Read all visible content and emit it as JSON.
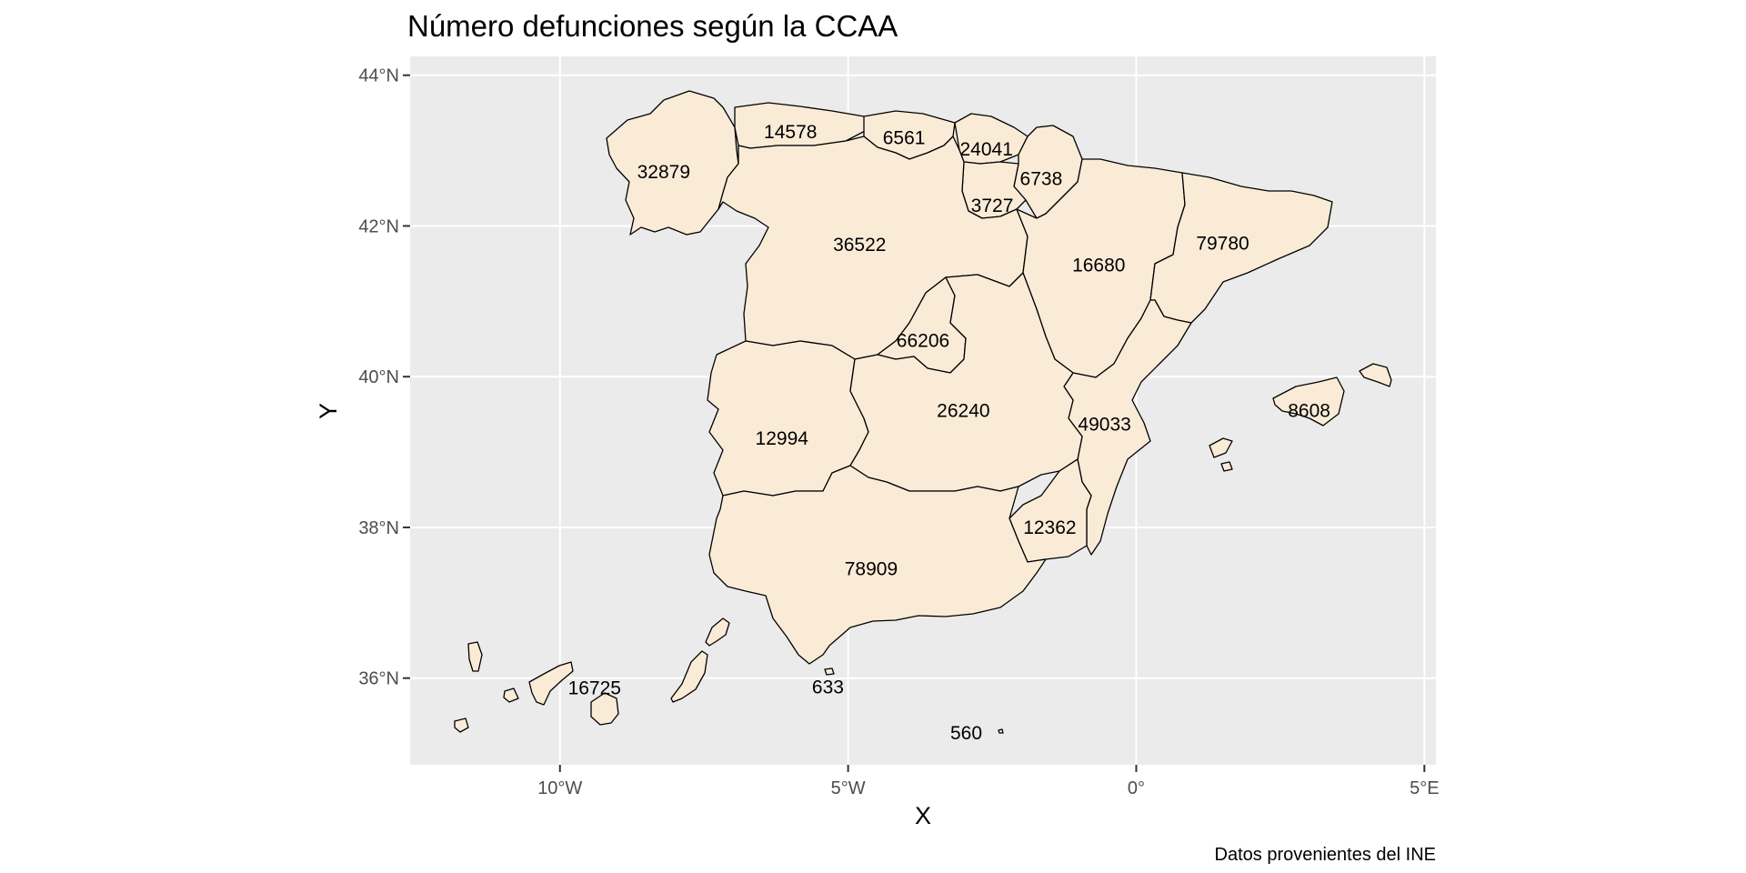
{
  "chart_data": {
    "type": "choropleth-map",
    "title": "Número defunciones según la CCAA",
    "xlabel": "X",
    "ylabel": "Y",
    "caption": "Datos provenientes del INE",
    "xlim": [
      -12.6,
      5.2
    ],
    "ylim": [
      34.85,
      44.25
    ],
    "x_ticks": [
      {
        "value": -10,
        "label": "10°W"
      },
      {
        "value": -5,
        "label": "5°W"
      },
      {
        "value": 0,
        "label": "0°"
      },
      {
        "value": 5,
        "label": "5°E"
      }
    ],
    "y_ticks": [
      {
        "value": 36,
        "label": "36°N"
      },
      {
        "value": 38,
        "label": "38°N"
      },
      {
        "value": 40,
        "label": "40°N"
      },
      {
        "value": 42,
        "label": "42°N"
      },
      {
        "value": 44,
        "label": "44°N"
      }
    ],
    "grid": true,
    "panel_background": "#EBEBEB",
    "fill_color": "#FAEBD7",
    "border_color": "#000000",
    "labels": [
      {
        "value": "32879",
        "lon": -8.2,
        "lat": 42.72
      },
      {
        "value": "14578",
        "lon": -6.0,
        "lat": 43.25
      },
      {
        "value": "6561",
        "lon": -4.03,
        "lat": 43.17
      },
      {
        "value": "24041",
        "lon": -2.6,
        "lat": 43.02
      },
      {
        "value": "6738",
        "lon": -1.65,
        "lat": 42.63
      },
      {
        "value": "3727",
        "lon": -2.5,
        "lat": 42.27
      },
      {
        "value": "36522",
        "lon": -4.8,
        "lat": 41.75
      },
      {
        "value": "16680",
        "lon": -0.65,
        "lat": 41.48
      },
      {
        "value": "79780",
        "lon": 1.5,
        "lat": 41.77
      },
      {
        "value": "66206",
        "lon": -3.7,
        "lat": 40.48
      },
      {
        "value": "26240",
        "lon": -3.0,
        "lat": 39.55
      },
      {
        "value": "49033",
        "lon": -0.55,
        "lat": 39.37
      },
      {
        "value": "8608",
        "lon": 3.0,
        "lat": 39.55
      },
      {
        "value": "12994",
        "lon": -6.15,
        "lat": 39.18
      },
      {
        "value": "12362",
        "lon": -1.5,
        "lat": 38.0
      },
      {
        "value": "78909",
        "lon": -4.6,
        "lat": 37.45
      },
      {
        "value": "16725",
        "lon": -9.4,
        "lat": 35.87
      },
      {
        "value": "633",
        "lon": -5.35,
        "lat": 35.88
      },
      {
        "value": "560",
        "lon": -2.95,
        "lat": 35.27
      }
    ]
  }
}
